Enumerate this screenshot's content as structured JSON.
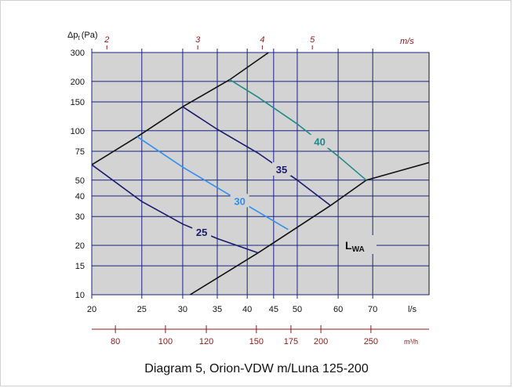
{
  "chart_data": {
    "type": "line",
    "title": "",
    "ylabel": "Δp",
    "ylabel_sub": "t",
    "ylabel_unit": "(Pa)",
    "xlabel": "l/s",
    "x_scale": "log",
    "y_scale": "log",
    "xlim": [
      20,
      90
    ],
    "ylim": [
      10,
      300
    ],
    "grid": true,
    "x_ticks": [
      20,
      25,
      30,
      35,
      40,
      45,
      50,
      60,
      70
    ],
    "y_ticks": [
      10,
      15,
      20,
      30,
      40,
      50,
      75,
      100,
      150,
      200,
      300
    ],
    "velocity_axis": {
      "unit": "m/s",
      "ticks": [
        2,
        3,
        4,
        5
      ]
    },
    "flow_axis": {
      "unit": "m³/h",
      "ticks": [
        80,
        100,
        120,
        150,
        175,
        200,
        250
      ]
    },
    "series": [
      {
        "name": "25",
        "color": "#1a1a6e",
        "points": [
          [
            20,
            62
          ],
          [
            25,
            37
          ],
          [
            30,
            27
          ],
          [
            35,
            22
          ],
          [
            42,
            18
          ]
        ]
      },
      {
        "name": "30",
        "color": "#2f8ff0",
        "points": [
          [
            24.5,
            92
          ],
          [
            30,
            60
          ],
          [
            35,
            45
          ],
          [
            42,
            32
          ],
          [
            48,
            25
          ]
        ]
      },
      {
        "name": "35",
        "color": "#1a1a6e",
        "points": [
          [
            30,
            140
          ],
          [
            35,
            102
          ],
          [
            42,
            73
          ],
          [
            50,
            50
          ],
          [
            58,
            35
          ]
        ]
      },
      {
        "name": "40",
        "color": "#1f8a8a",
        "points": [
          [
            37,
            205
          ],
          [
            42,
            160
          ],
          [
            50,
            110
          ],
          [
            60,
            70
          ],
          [
            68,
            50
          ]
        ]
      }
    ],
    "boundaries": [
      {
        "color": "#111111",
        "points": [
          [
            20,
            62
          ],
          [
            24.5,
            92
          ],
          [
            30,
            140
          ],
          [
            37,
            205
          ],
          [
            44,
            300
          ]
        ]
      },
      {
        "color": "#111111",
        "points": [
          [
            31,
            10
          ],
          [
            42,
            18
          ],
          [
            58,
            35
          ],
          [
            68,
            50
          ],
          [
            90,
            64
          ]
        ]
      }
    ],
    "label_LWA": {
      "main": "L",
      "sub": "WA"
    }
  },
  "caption": "Diagram 5, Orion-VDW m/Luna 125-200"
}
